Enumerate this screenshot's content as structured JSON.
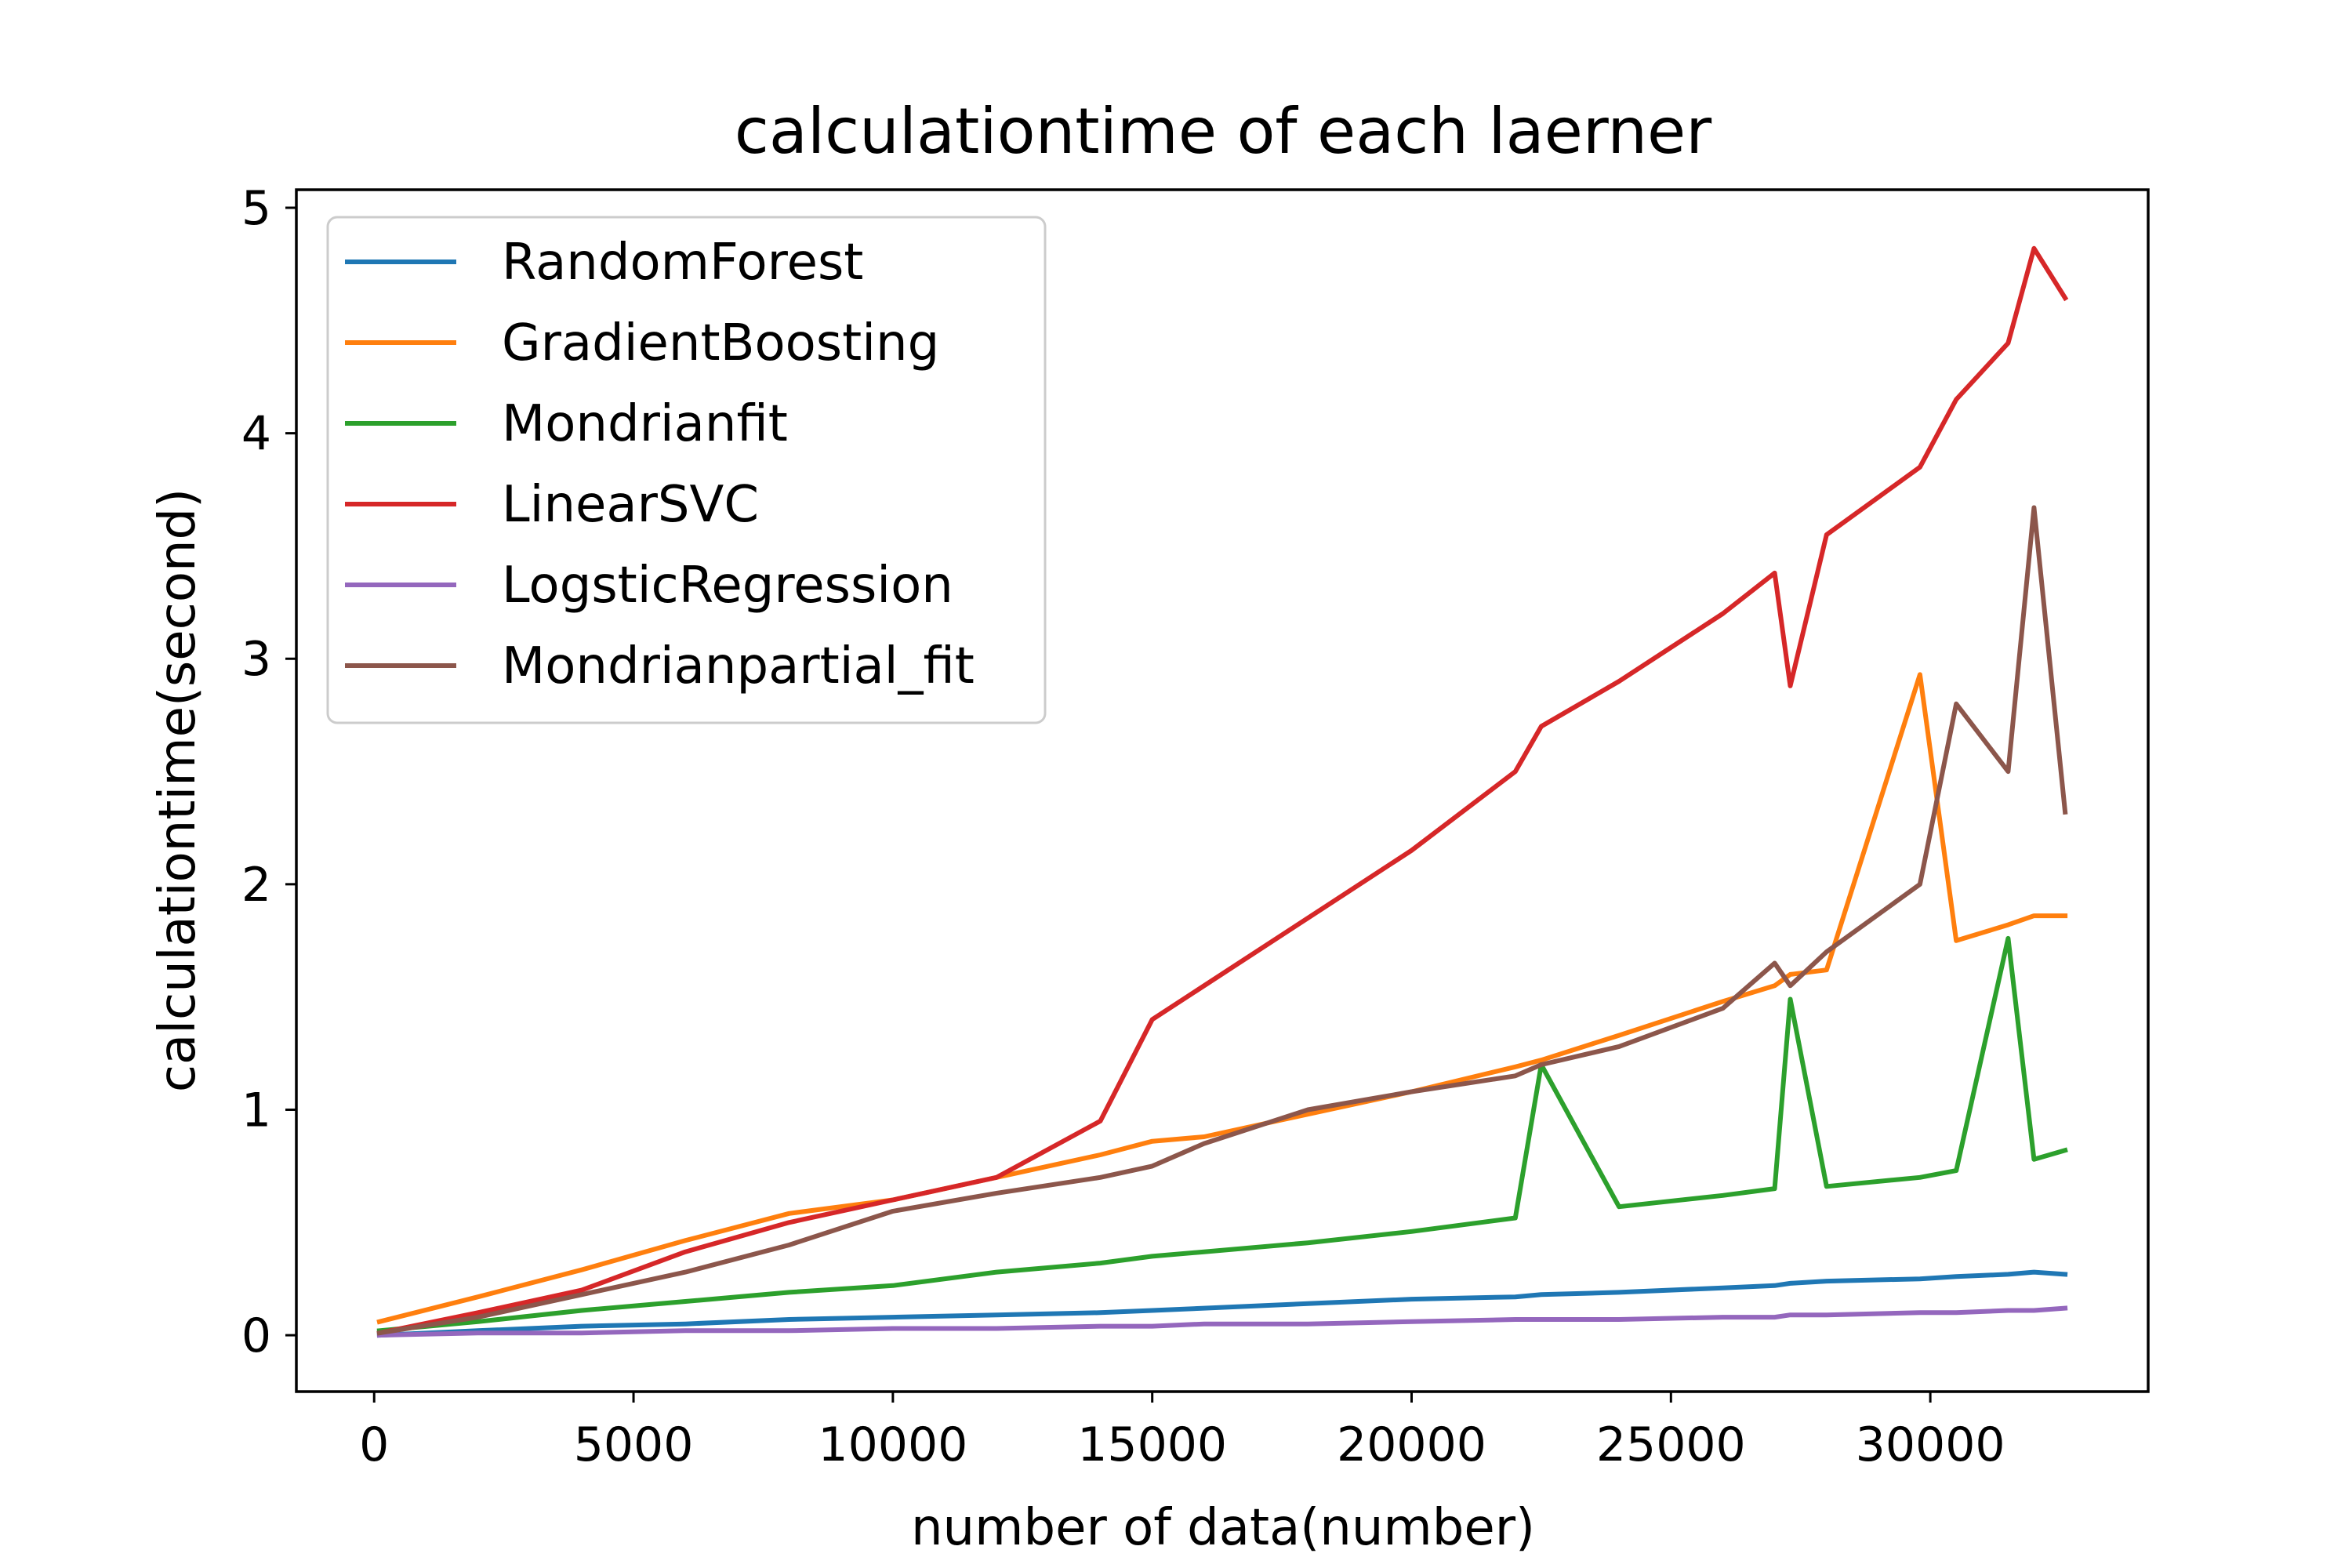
{
  "chart_data": {
    "type": "line",
    "title": "calculationtime of each laerner",
    "xlabel": "number of data(number)",
    "ylabel": "calculationtime(second)",
    "xlim": [
      -1500,
      34200
    ],
    "ylim": [
      -0.25,
      5.08
    ],
    "xticks": [
      0,
      5000,
      10000,
      15000,
      20000,
      25000,
      30000
    ],
    "yticks": [
      0,
      1,
      2,
      3,
      4,
      5
    ],
    "xtick_labels": [
      "0",
      "5000",
      "10000",
      "15000",
      "20000",
      "25000",
      "30000"
    ],
    "ytick_labels": [
      "0",
      "1",
      "2",
      "3",
      "4",
      "5"
    ],
    "grid": false,
    "legend_position": "upper-left",
    "x": [
      100,
      2000,
      4000,
      6000,
      8000,
      10000,
      12000,
      14000,
      15000,
      16000,
      18000,
      20000,
      22000,
      22500,
      24000,
      26000,
      27000,
      27300,
      28000,
      29800,
      30500,
      31500,
      32000,
      32600
    ],
    "series": [
      {
        "name": "RandomForest",
        "color": "#1f77b4",
        "values": [
          0.0,
          0.02,
          0.04,
          0.05,
          0.07,
          0.08,
          0.09,
          0.1,
          0.11,
          0.12,
          0.14,
          0.16,
          0.17,
          0.18,
          0.19,
          0.21,
          0.22,
          0.23,
          0.24,
          0.25,
          0.26,
          0.27,
          0.28,
          0.27
        ]
      },
      {
        "name": "GradientBoosting",
        "color": "#ff7f0e",
        "values": [
          0.06,
          0.17,
          0.29,
          0.42,
          0.54,
          0.6,
          0.7,
          0.8,
          0.86,
          0.88,
          0.98,
          1.08,
          1.19,
          1.22,
          1.33,
          1.48,
          1.55,
          1.6,
          1.62,
          2.93,
          1.75,
          1.82,
          1.86,
          1.86
        ]
      },
      {
        "name": "Mondrianfit",
        "color": "#2ca02c",
        "values": [
          0.02,
          0.06,
          0.11,
          0.15,
          0.19,
          0.22,
          0.28,
          0.32,
          0.35,
          0.37,
          0.41,
          0.46,
          0.52,
          1.2,
          0.57,
          0.62,
          0.65,
          1.49,
          0.66,
          0.7,
          0.73,
          1.76,
          0.78,
          0.82
        ]
      },
      {
        "name": "LinearSVC",
        "color": "#d62728",
        "values": [
          0.01,
          0.1,
          0.2,
          0.37,
          0.5,
          0.6,
          0.7,
          0.95,
          1.4,
          1.55,
          1.85,
          2.15,
          2.5,
          2.7,
          2.9,
          3.2,
          3.38,
          2.88,
          3.55,
          3.85,
          4.15,
          4.4,
          4.82,
          4.6
        ]
      },
      {
        "name": "LogsticRegression",
        "color": "#9467bd",
        "values": [
          0.0,
          0.01,
          0.01,
          0.02,
          0.02,
          0.03,
          0.03,
          0.04,
          0.04,
          0.05,
          0.05,
          0.06,
          0.07,
          0.07,
          0.07,
          0.08,
          0.08,
          0.09,
          0.09,
          0.1,
          0.1,
          0.11,
          0.11,
          0.12
        ]
      },
      {
        "name": "Mondrianpartial_fit",
        "color": "#8c564b",
        "values": [
          0.01,
          0.08,
          0.18,
          0.28,
          0.4,
          0.55,
          0.63,
          0.7,
          0.75,
          0.85,
          1.0,
          1.08,
          1.15,
          1.2,
          1.28,
          1.45,
          1.65,
          1.55,
          1.7,
          2.0,
          2.8,
          2.5,
          3.67,
          2.32
        ]
      }
    ]
  }
}
